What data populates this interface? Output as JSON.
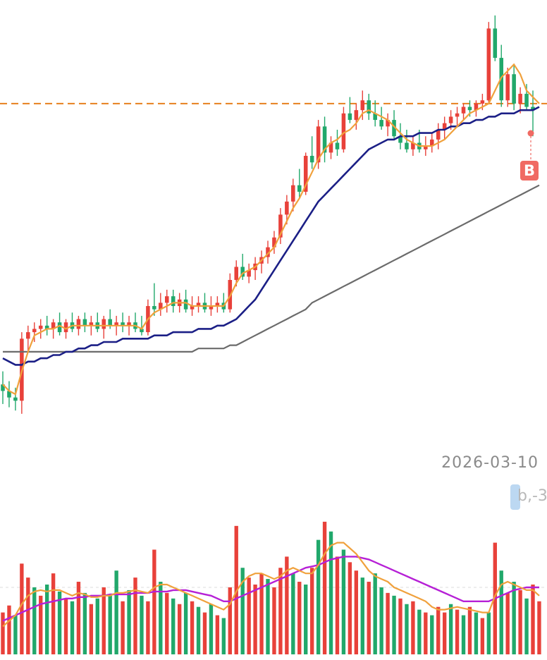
{
  "chart_data": [
    {
      "type": "candlestick",
      "title": "",
      "colors": {
        "up": "#e8413a",
        "down": "#21a86b",
        "ma_fast": "#f0a13c",
        "ma_mid": "#1b1f86",
        "ma_slow": "#6b6b6b",
        "ref_line": "#e8872a"
      },
      "reference_line": {
        "style": "dashed",
        "value": 100
      },
      "bars": [
        {
          "o": 14,
          "h": 18,
          "l": 8,
          "c": 12
        },
        {
          "o": 12,
          "h": 15,
          "l": 7,
          "c": 10
        },
        {
          "o": 10,
          "h": 13,
          "l": 6,
          "c": 9
        },
        {
          "o": 9,
          "h": 30,
          "l": 5,
          "c": 28
        },
        {
          "o": 28,
          "h": 32,
          "l": 24,
          "c": 30
        },
        {
          "o": 30,
          "h": 33,
          "l": 27,
          "c": 31
        },
        {
          "o": 31,
          "h": 34,
          "l": 28,
          "c": 32
        },
        {
          "o": 32,
          "h": 35,
          "l": 29,
          "c": 31
        },
        {
          "o": 31,
          "h": 34,
          "l": 28,
          "c": 33
        },
        {
          "o": 33,
          "h": 36,
          "l": 29,
          "c": 30
        },
        {
          "o": 30,
          "h": 34,
          "l": 28,
          "c": 33
        },
        {
          "o": 33,
          "h": 36,
          "l": 30,
          "c": 31
        },
        {
          "o": 31,
          "h": 35,
          "l": 29,
          "c": 34
        },
        {
          "o": 34,
          "h": 36,
          "l": 30,
          "c": 32
        },
        {
          "o": 32,
          "h": 35,
          "l": 29,
          "c": 33
        },
        {
          "o": 33,
          "h": 36,
          "l": 30,
          "c": 31
        },
        {
          "o": 31,
          "h": 35,
          "l": 28,
          "c": 34
        },
        {
          "o": 34,
          "h": 37,
          "l": 31,
          "c": 32
        },
        {
          "o": 32,
          "h": 35,
          "l": 29,
          "c": 33
        },
        {
          "o": 33,
          "h": 36,
          "l": 30,
          "c": 32
        },
        {
          "o": 32,
          "h": 35,
          "l": 29,
          "c": 33
        },
        {
          "o": 33,
          "h": 36,
          "l": 30,
          "c": 31
        },
        {
          "o": 31,
          "h": 35,
          "l": 29,
          "c": 30
        },
        {
          "o": 30,
          "h": 40,
          "l": 29,
          "c": 38
        },
        {
          "o": 38,
          "h": 45,
          "l": 35,
          "c": 37
        },
        {
          "o": 37,
          "h": 42,
          "l": 35,
          "c": 39
        },
        {
          "o": 39,
          "h": 43,
          "l": 36,
          "c": 41
        },
        {
          "o": 41,
          "h": 43,
          "l": 36,
          "c": 38
        },
        {
          "o": 38,
          "h": 42,
          "l": 36,
          "c": 40
        },
        {
          "o": 40,
          "h": 43,
          "l": 36,
          "c": 37
        },
        {
          "o": 37,
          "h": 41,
          "l": 35,
          "c": 38
        },
        {
          "o": 38,
          "h": 41,
          "l": 36,
          "c": 39
        },
        {
          "o": 39,
          "h": 42,
          "l": 36,
          "c": 37
        },
        {
          "o": 37,
          "h": 41,
          "l": 35,
          "c": 38
        },
        {
          "o": 38,
          "h": 41,
          "l": 36,
          "c": 39
        },
        {
          "o": 39,
          "h": 42,
          "l": 36,
          "c": 37
        },
        {
          "o": 37,
          "h": 48,
          "l": 36,
          "c": 46
        },
        {
          "o": 46,
          "h": 52,
          "l": 44,
          "c": 50
        },
        {
          "o": 50,
          "h": 54,
          "l": 46,
          "c": 47
        },
        {
          "o": 47,
          "h": 51,
          "l": 45,
          "c": 49
        },
        {
          "o": 49,
          "h": 53,
          "l": 46,
          "c": 51
        },
        {
          "o": 51,
          "h": 55,
          "l": 48,
          "c": 53
        },
        {
          "o": 53,
          "h": 58,
          "l": 51,
          "c": 56
        },
        {
          "o": 56,
          "h": 61,
          "l": 54,
          "c": 59
        },
        {
          "o": 59,
          "h": 68,
          "l": 57,
          "c": 66
        },
        {
          "o": 66,
          "h": 72,
          "l": 63,
          "c": 70
        },
        {
          "o": 70,
          "h": 77,
          "l": 67,
          "c": 75
        },
        {
          "o": 75,
          "h": 80,
          "l": 71,
          "c": 73
        },
        {
          "o": 73,
          "h": 85,
          "l": 72,
          "c": 84
        },
        {
          "o": 84,
          "h": 90,
          "l": 80,
          "c": 82
        },
        {
          "o": 82,
          "h": 95,
          "l": 80,
          "c": 93
        },
        {
          "o": 93,
          "h": 96,
          "l": 82,
          "c": 85
        },
        {
          "o": 85,
          "h": 90,
          "l": 83,
          "c": 88
        },
        {
          "o": 88,
          "h": 92,
          "l": 84,
          "c": 86
        },
        {
          "o": 86,
          "h": 99,
          "l": 85,
          "c": 97
        },
        {
          "o": 97,
          "h": 102,
          "l": 94,
          "c": 95
        },
        {
          "o": 95,
          "h": 100,
          "l": 92,
          "c": 98
        },
        {
          "o": 98,
          "h": 104,
          "l": 95,
          "c": 101
        },
        {
          "o": 101,
          "h": 103,
          "l": 95,
          "c": 97
        },
        {
          "o": 97,
          "h": 101,
          "l": 93,
          "c": 95
        },
        {
          "o": 95,
          "h": 99,
          "l": 92,
          "c": 93
        },
        {
          "o": 93,
          "h": 97,
          "l": 90,
          "c": 95
        },
        {
          "o": 95,
          "h": 98,
          "l": 89,
          "c": 90
        },
        {
          "o": 90,
          "h": 94,
          "l": 86,
          "c": 88
        },
        {
          "o": 88,
          "h": 92,
          "l": 85,
          "c": 86
        },
        {
          "o": 86,
          "h": 90,
          "l": 84,
          "c": 88
        },
        {
          "o": 88,
          "h": 92,
          "l": 85,
          "c": 86
        },
        {
          "o": 86,
          "h": 90,
          "l": 84,
          "c": 87
        },
        {
          "o": 87,
          "h": 91,
          "l": 85,
          "c": 89
        },
        {
          "o": 89,
          "h": 94,
          "l": 86,
          "c": 92
        },
        {
          "o": 92,
          "h": 96,
          "l": 89,
          "c": 94
        },
        {
          "o": 94,
          "h": 98,
          "l": 92,
          "c": 96
        },
        {
          "o": 96,
          "h": 99,
          "l": 93,
          "c": 97
        },
        {
          "o": 97,
          "h": 100,
          "l": 95,
          "c": 99
        },
        {
          "o": 99,
          "h": 101,
          "l": 96,
          "c": 98
        },
        {
          "o": 98,
          "h": 101,
          "l": 96,
          "c": 100
        },
        {
          "o": 100,
          "h": 103,
          "l": 98,
          "c": 101
        },
        {
          "o": 101,
          "h": 125,
          "l": 100,
          "c": 123
        },
        {
          "o": 123,
          "h": 127,
          "l": 113,
          "c": 114
        },
        {
          "o": 114,
          "h": 118,
          "l": 99,
          "c": 101
        },
        {
          "o": 101,
          "h": 111,
          "l": 99,
          "c": 109
        },
        {
          "o": 109,
          "h": 112,
          "l": 98,
          "c": 100
        },
        {
          "o": 100,
          "h": 105,
          "l": 97,
          "c": 103
        },
        {
          "o": 103,
          "h": 106,
          "l": 98,
          "c": 99
        },
        {
          "o": 99,
          "h": 104,
          "l": 90,
          "c": 98
        }
      ],
      "ma_fast": [
        14,
        12,
        11,
        18,
        24,
        29,
        30,
        31,
        31,
        32,
        31,
        32,
        32,
        32,
        32,
        32,
        32,
        32,
        32,
        32,
        32,
        32,
        31,
        34,
        36,
        37,
        38,
        39,
        39,
        39,
        38,
        38,
        38,
        38,
        38,
        38,
        41,
        45,
        48,
        49,
        50,
        52,
        54,
        56,
        60,
        64,
        68,
        71,
        75,
        79,
        83,
        86,
        88,
        89,
        91,
        92,
        94,
        97,
        98,
        97,
        96,
        95,
        93,
        91,
        89,
        88,
        87,
        87,
        87,
        88,
        89,
        91,
        93,
        95,
        97,
        98,
        99,
        100,
        104,
        108,
        110,
        112,
        109,
        104,
        102,
        100
      ],
      "ma_mid": [
        22,
        21,
        20,
        20,
        21,
        21,
        22,
        22,
        23,
        23,
        24,
        24,
        25,
        25,
        26,
        26,
        27,
        27,
        27,
        28,
        28,
        28,
        28,
        28,
        29,
        29,
        29,
        30,
        30,
        30,
        30,
        31,
        31,
        31,
        32,
        32,
        33,
        34,
        36,
        38,
        40,
        43,
        46,
        49,
        52,
        55,
        58,
        61,
        64,
        67,
        70,
        72,
        74,
        76,
        78,
        80,
        82,
        84,
        86,
        87,
        88,
        89,
        89,
        90,
        90,
        90,
        91,
        91,
        91,
        92,
        92,
        93,
        93,
        94,
        94,
        95,
        95,
        96,
        96,
        97,
        97,
        97,
        98,
        98,
        98,
        99
      ],
      "ma_slow": [
        24,
        24,
        24,
        24,
        24,
        24,
        24,
        24,
        24,
        24,
        24,
        24,
        24,
        24,
        24,
        24,
        24,
        24,
        24,
        24,
        24,
        24,
        24,
        24,
        24,
        24,
        24,
        24,
        24,
        24,
        24,
        25,
        25,
        25,
        25,
        25,
        26,
        26,
        27,
        28,
        29,
        30,
        31,
        32,
        33,
        34,
        35,
        36,
        37,
        39,
        40,
        41,
        42,
        43,
        44,
        45,
        46,
        47,
        48,
        49,
        50,
        51,
        52,
        53,
        54,
        55,
        56,
        57,
        58,
        59,
        60,
        61,
        62,
        63,
        64,
        65,
        66,
        67,
        68,
        69,
        70,
        71,
        72,
        73,
        74,
        75
      ]
    },
    {
      "type": "bar",
      "title": "",
      "volume": [
        30,
        35,
        28,
        65,
        55,
        48,
        42,
        50,
        58,
        45,
        40,
        38,
        52,
        44,
        36,
        40,
        48,
        42,
        60,
        38,
        46,
        55,
        42,
        38,
        75,
        52,
        44,
        40,
        36,
        44,
        38,
        34,
        30,
        36,
        28,
        26,
        48,
        92,
        62,
        55,
        50,
        58,
        54,
        48,
        62,
        70,
        58,
        52,
        50,
        62,
        82,
        95,
        88,
        70,
        75,
        66,
        60,
        55,
        52,
        58,
        48,
        44,
        42,
        40,
        36,
        38,
        32,
        30,
        28,
        34,
        30,
        36,
        32,
        28,
        34,
        30,
        26,
        30,
        80,
        60,
        44,
        52,
        46,
        40,
        50,
        38
      ],
      "volume_up": [
        true,
        true,
        false,
        true,
        true,
        false,
        true,
        false,
        true,
        false,
        true,
        false,
        true,
        false,
        true,
        false,
        true,
        false,
        false,
        true,
        false,
        true,
        false,
        true,
        true,
        false,
        true,
        false,
        true,
        false,
        true,
        false,
        true,
        false,
        true,
        false,
        true,
        true,
        false,
        true,
        true,
        true,
        false,
        true,
        true,
        true,
        false,
        true,
        false,
        true,
        false,
        true,
        false,
        true,
        false,
        true,
        true,
        false,
        true,
        false,
        false,
        true,
        false,
        true,
        false,
        true,
        false,
        true,
        false,
        true,
        true,
        false,
        true,
        false,
        true,
        false,
        true,
        false,
        true,
        false,
        true,
        false,
        true,
        false,
        true,
        true
      ],
      "ma_short": [
        20,
        24,
        28,
        36,
        42,
        45,
        46,
        45,
        46,
        46,
        44,
        42,
        44,
        43,
        41,
        41,
        42,
        42,
        44,
        44,
        45,
        46,
        45,
        44,
        48,
        50,
        50,
        48,
        46,
        44,
        42,
        40,
        38,
        36,
        34,
        32,
        36,
        45,
        52,
        56,
        58,
        58,
        56,
        54,
        56,
        60,
        62,
        60,
        58,
        58,
        64,
        72,
        78,
        80,
        80,
        76,
        72,
        66,
        60,
        56,
        54,
        52,
        48,
        46,
        44,
        42,
        40,
        38,
        34,
        32,
        32,
        33,
        34,
        33,
        32,
        31,
        30,
        30,
        42,
        50,
        52,
        50,
        48,
        46,
        46,
        42
      ],
      "ma_long": [
        24,
        26,
        28,
        30,
        32,
        34,
        36,
        37,
        38,
        39,
        40,
        40,
        41,
        41,
        42,
        42,
        42,
        43,
        43,
        43,
        43,
        44,
        44,
        44,
        45,
        45,
        45,
        46,
        46,
        46,
        45,
        44,
        43,
        42,
        40,
        38,
        38,
        40,
        42,
        44,
        46,
        48,
        50,
        52,
        54,
        56,
        58,
        60,
        62,
        63,
        64,
        66,
        68,
        69,
        70,
        70,
        70,
        69,
        68,
        66,
        64,
        62,
        60,
        58,
        56,
        54,
        52,
        50,
        48,
        46,
        44,
        42,
        40,
        38,
        38,
        38,
        38,
        38,
        40,
        42,
        44,
        46,
        47,
        48,
        48,
        48
      ]
    }
  ],
  "date_label": "2026-03-10",
  "badge_label": "B",
  "ghost_tag_text": "b,-3"
}
